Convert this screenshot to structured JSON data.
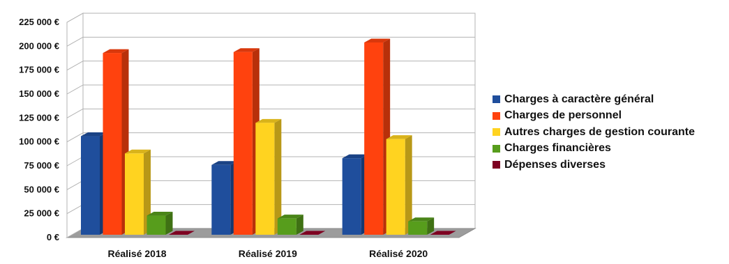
{
  "chart_data": {
    "type": "bar",
    "categories": [
      "Réalisé 2018",
      "Réalisé 2019",
      "Réalisé 2020"
    ],
    "series": [
      {
        "name": "Charges à caractère général",
        "color": "#1f4e9c",
        "values": [
          103000,
          73000,
          80000
        ]
      },
      {
        "name": "Charges de personnel",
        "color": "#ff420e",
        "values": [
          190000,
          191000,
          201000
        ]
      },
      {
        "name": "Autres charges de gestion courante",
        "color": "#ffd320",
        "values": [
          85000,
          117000,
          100000
        ]
      },
      {
        "name": "Charges financières",
        "color": "#579d1c",
        "values": [
          20000,
          17000,
          14000
        ]
      },
      {
        "name": "Dépenses diverses",
        "color": "#7e0021",
        "values": [
          0,
          0,
          0
        ]
      }
    ],
    "yticks": [
      "0 €",
      "25 000 €",
      "50 000 €",
      "75 000 €",
      "100 000 €",
      "125 000 €",
      "150 000 €",
      "175 000 €",
      "200 000 €",
      "225 000 €"
    ],
    "ylim": [
      0,
      225000
    ],
    "grid": true,
    "legend_position": "right",
    "title": "",
    "xlabel": "",
    "ylabel": ""
  }
}
